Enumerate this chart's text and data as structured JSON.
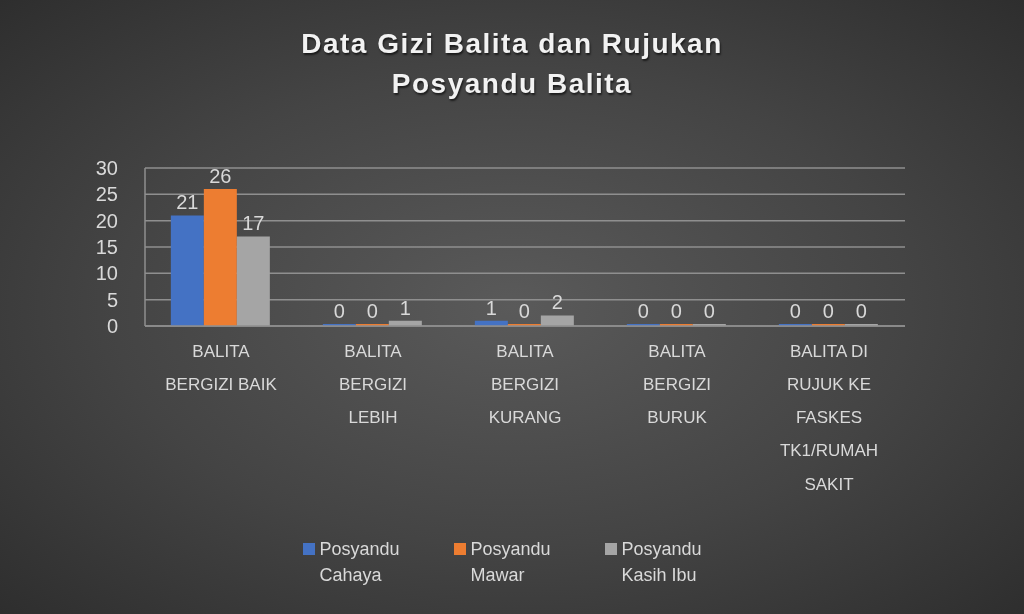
{
  "chart_data": {
    "type": "bar",
    "title": "Data Gizi Balita dan Rujukan Posyandu Balita",
    "categories": [
      "BALITA BERGIZI BAIK",
      "BALITA BERGIZI LEBIH",
      "BALITA BERGIZI KURANG",
      "BALITA BERGIZI BURUK",
      "BALITA DI RUJUK KE FASKES TK1/RUMAH SAKIT"
    ],
    "series": [
      {
        "name": "Posyandu Cahaya",
        "color": "#4472c4",
        "values": [
          21,
          0,
          1,
          0,
          0
        ]
      },
      {
        "name": "Posyandu Mawar",
        "color": "#ed7d31",
        "values": [
          26,
          0,
          0,
          0,
          0
        ]
      },
      {
        "name": "Posyandu Kasih Ibu",
        "color": "#a5a5a5",
        "values": [
          17,
          1,
          2,
          0,
          0
        ]
      }
    ],
    "ylim": [
      0,
      30
    ],
    "yticks": [
      0,
      5,
      10,
      15,
      20,
      25,
      30
    ],
    "grid": "y",
    "legend": "bottom",
    "data_labels": true
  }
}
